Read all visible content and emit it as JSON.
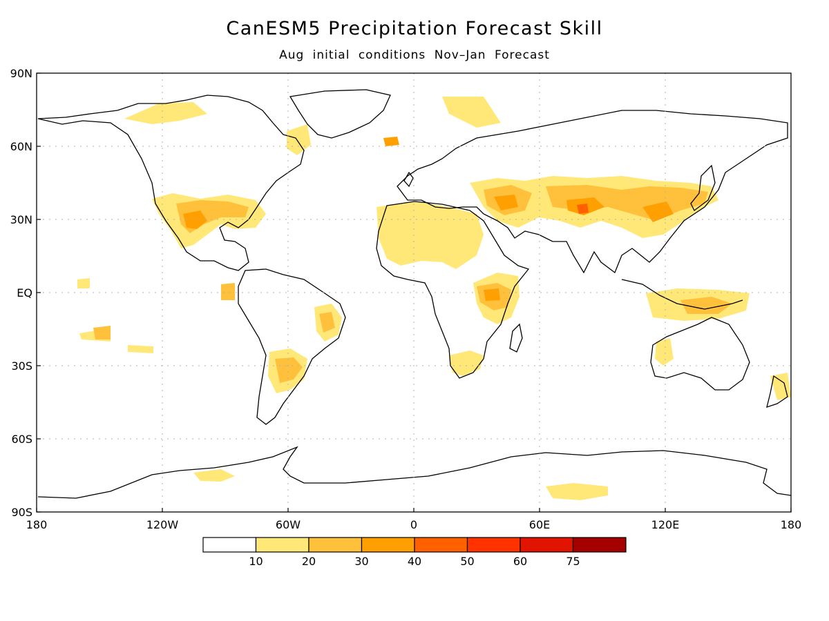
{
  "title": "CanESM5 Precipitation Forecast Skill",
  "subtitle": "Aug initial conditions   Nov–Jan Forecast",
  "axes": {
    "lon_ticks": [
      "180",
      "120W",
      "60W",
      "0",
      "60E",
      "120E",
      "180"
    ],
    "lat_ticks": [
      "90N",
      "60N",
      "30N",
      "EQ",
      "30S",
      "60S",
      "90S"
    ]
  },
  "colorbar": {
    "labels": [
      "10",
      "20",
      "30",
      "40",
      "50",
      "60",
      "75"
    ],
    "colors": [
      "#ffffff",
      "#ffe878",
      "#ffc03c",
      "#ffa000",
      "#ff6000",
      "#ff3200",
      "#e11400",
      "#a50000"
    ]
  }
}
